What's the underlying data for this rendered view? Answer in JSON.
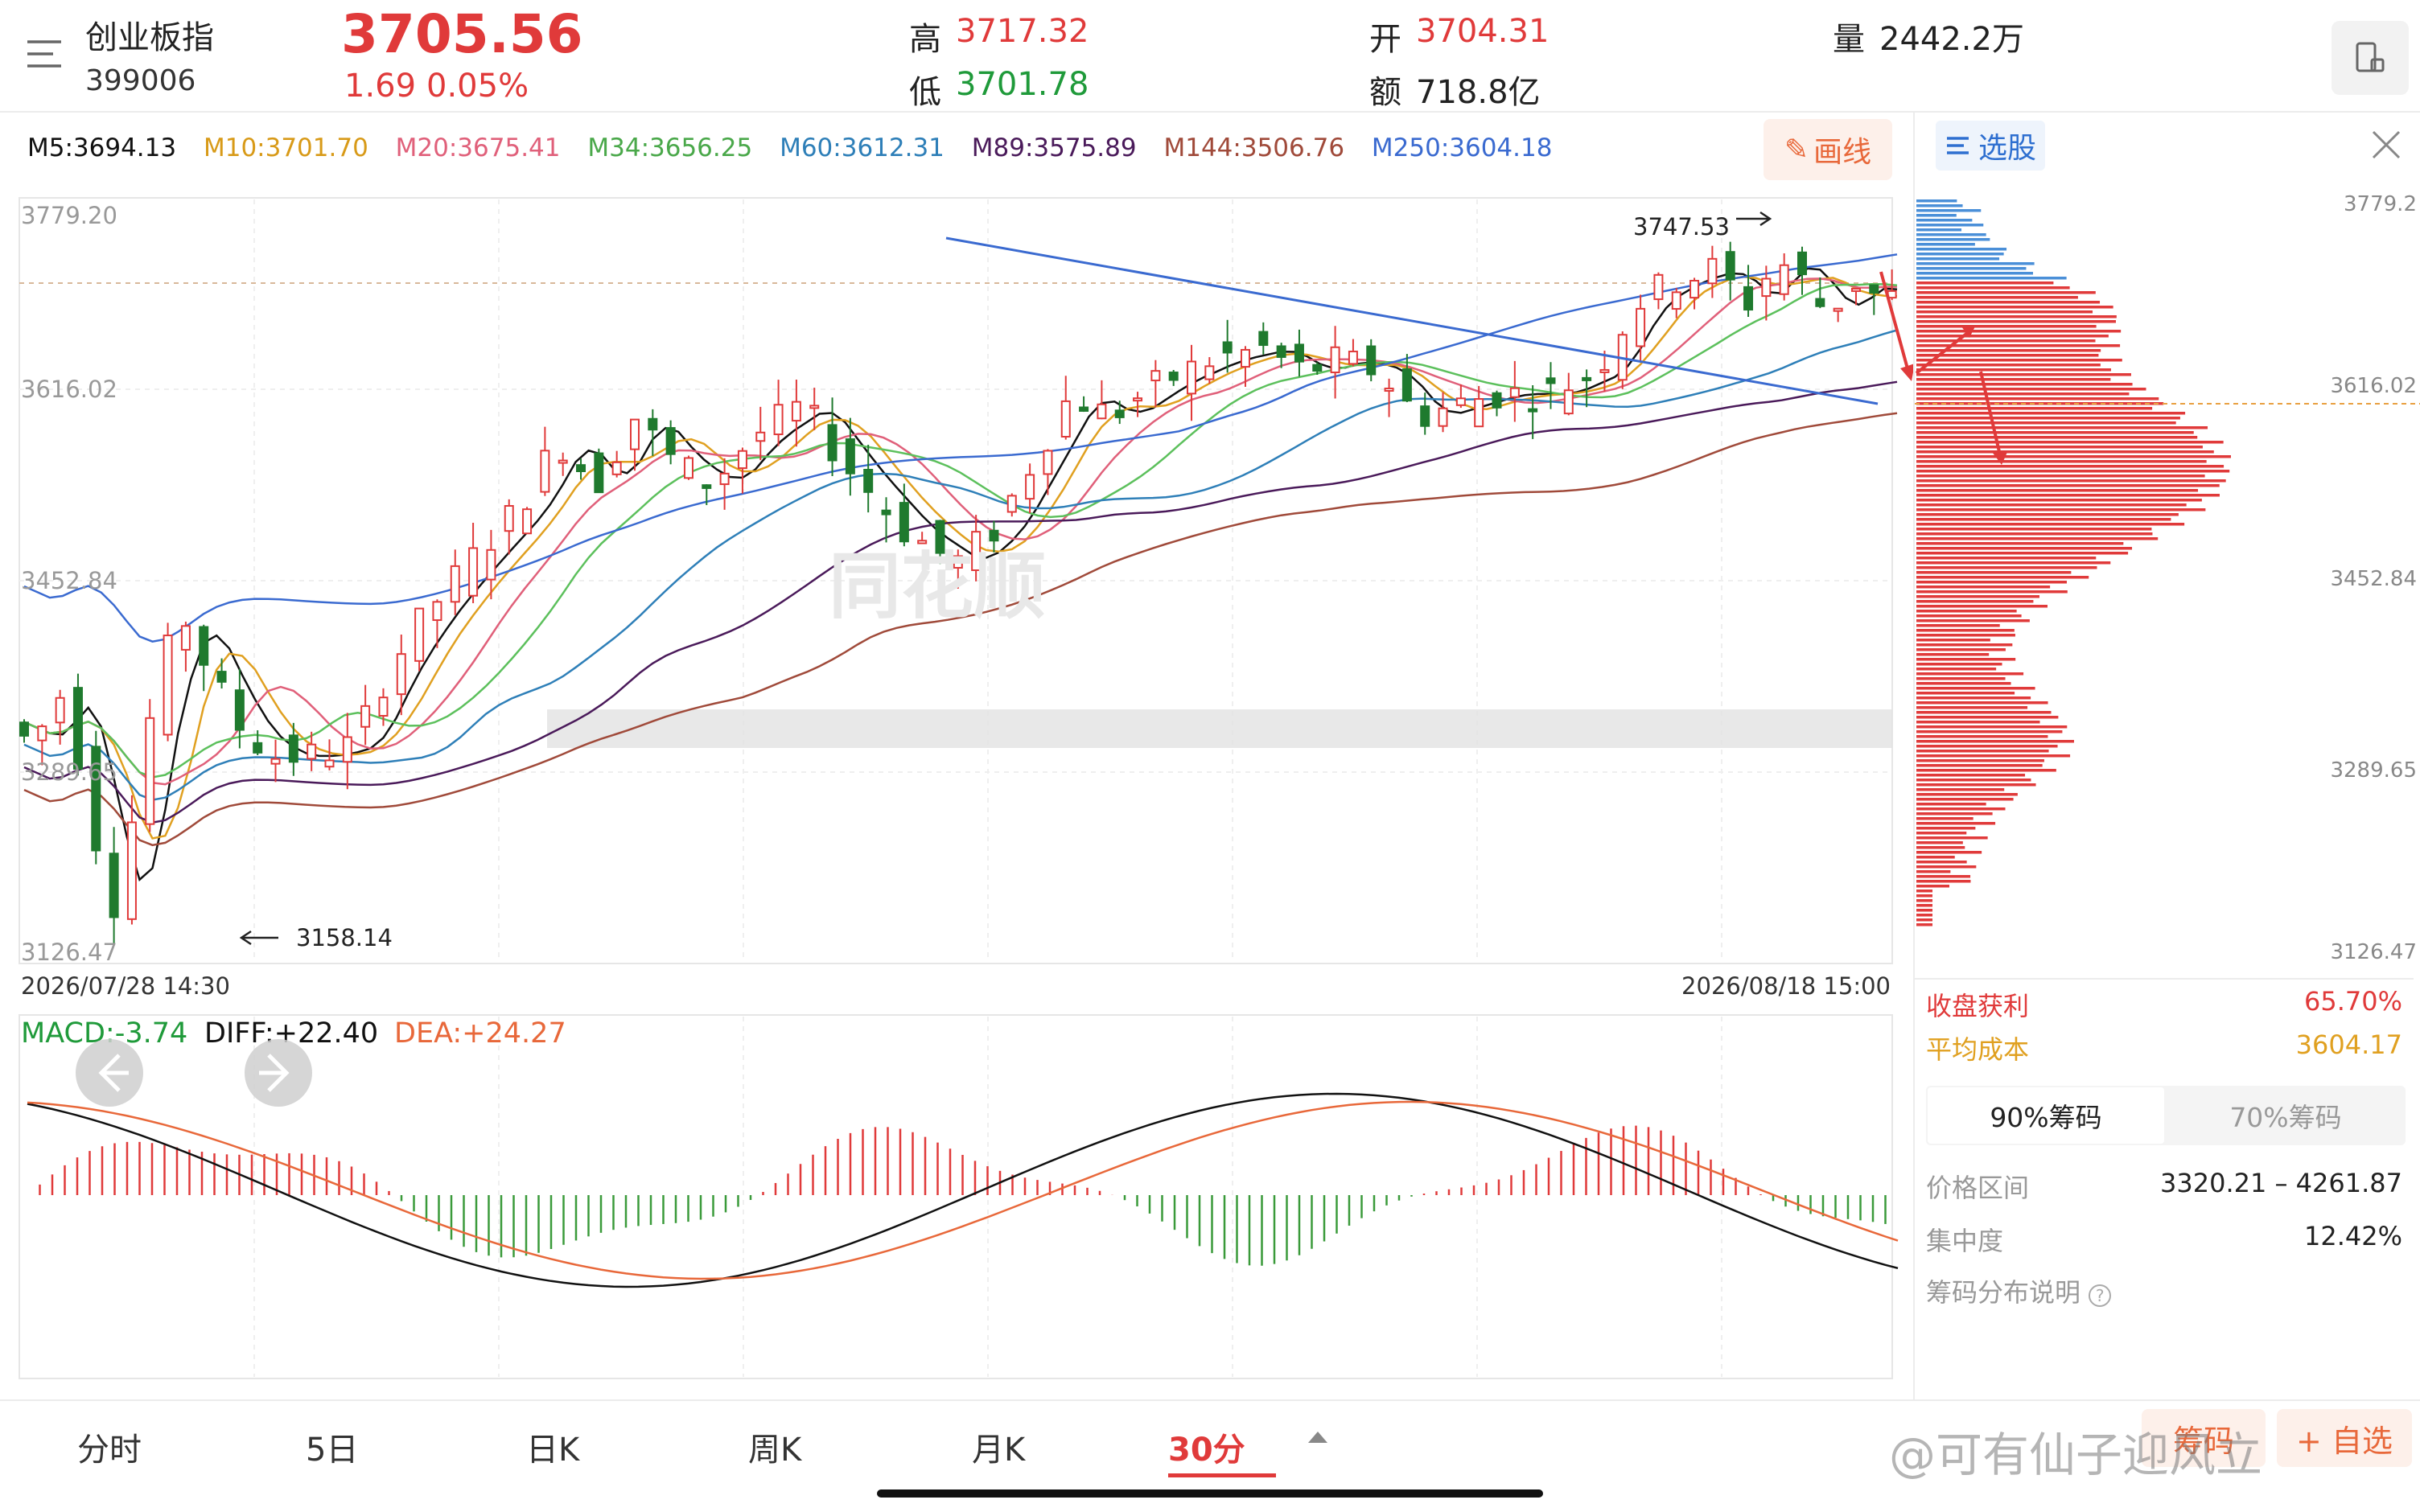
{
  "header": {
    "name": "创业板指",
    "code": "399006",
    "price": "3705.56",
    "change": "1.69",
    "change_pct": "0.05%",
    "high_label": "高",
    "high": "3717.32",
    "low_label": "低",
    "low": "3701.78",
    "open_label": "开",
    "open": "3704.31",
    "amount_label": "额",
    "amount": "718.8亿",
    "volume_label": "量",
    "volume": "2442.2万"
  },
  "ma": {
    "m5": "M5:3694.13",
    "m10": "M10:3701.70",
    "m20": "M20:3675.41",
    "m34": "M34:3656.25",
    "m60": "M60:3612.31",
    "m89": "M89:3575.89",
    "m144": "M144:3506.76",
    "m250": "M250:3604.18"
  },
  "colors": {
    "up": "#e03a3a",
    "down": "#1f7a2e",
    "m5": "#111111",
    "m10": "#e0a020",
    "m20": "#e0607a",
    "m34": "#5cc05c",
    "m60": "#2e7fb8",
    "m89": "#4a1a5a",
    "m144": "#a04a3a",
    "m250": "#3a6ad0"
  },
  "draw_button": "画线",
  "main_chart": {
    "y_labels": [
      "3779.20",
      "3616.02",
      "3452.84",
      "3289.65",
      "3126.47"
    ],
    "high_mark": "3747.53",
    "low_mark": "3158.14",
    "date_start": "2026/07/28 14:30",
    "date_end": "2026/08/18 15:00",
    "watermark": "同花顺"
  },
  "macd": {
    "macd": "MACD:-3.74",
    "diff": "DIFF:+22.40",
    "dea": "DEA:+24.27"
  },
  "right_panel": {
    "title": "选股",
    "close_icon": "close-icon",
    "y_labels": [
      "3779.2",
      "3616.02",
      "3452.84",
      "3289.65",
      "3126.47"
    ],
    "profit_label": "收盘获利",
    "profit_value": "65.70%",
    "avg_label": "平均成本",
    "avg_value": "3604.17",
    "tab_90": "90%筹码",
    "tab_70": "70%筹码",
    "range_label": "价格区间",
    "range_value": "3320.21 – 4261.87",
    "concentration_label": "集中度",
    "concentration_value": "12.42%",
    "explain_label": "筹码分布说明"
  },
  "bottom_tabs": [
    "分时",
    "5日",
    "日K",
    "周K",
    "月K",
    "30分"
  ],
  "bottom_buttons": {
    "chip": "筹码",
    "watch": "+ 自选"
  },
  "weibo_watermark": "@可有仙子迎风立"
}
